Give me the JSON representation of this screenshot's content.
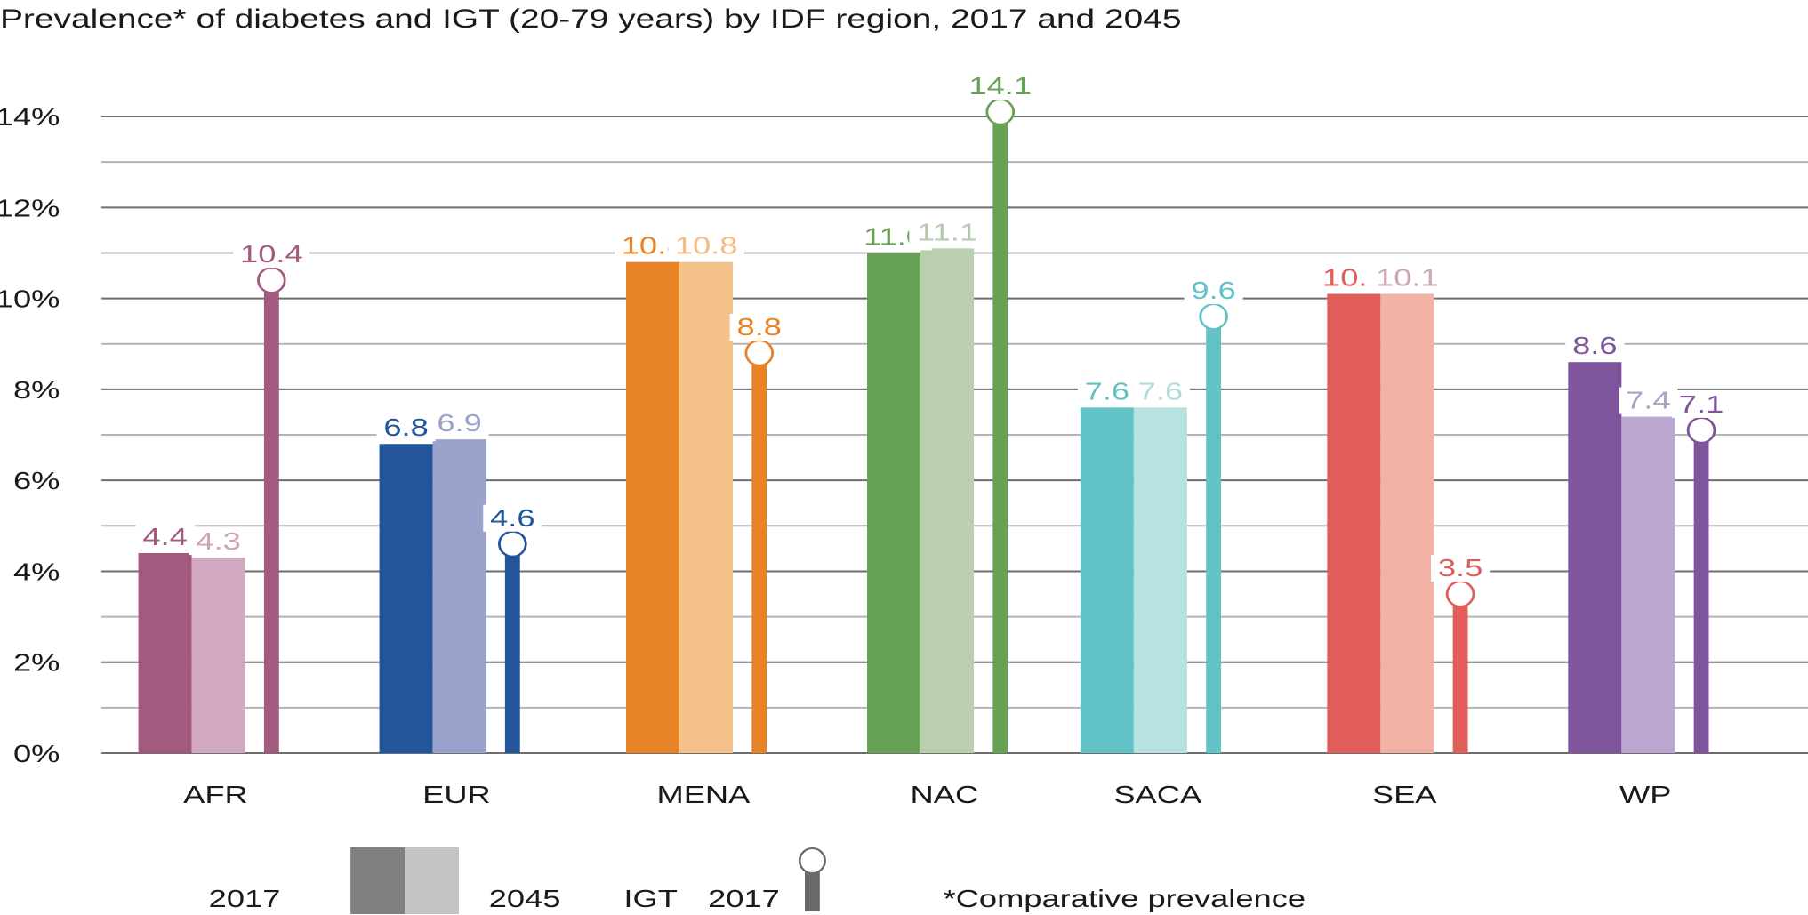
{
  "chart_data": {
    "type": "bar",
    "title": "Prevalence* of diabetes and IGT (20-79 years) by IDF region, 2017 and 2045",
    "xlabel": "",
    "ylabel": "",
    "ylim": [
      0,
      14
    ],
    "y_ticks": [
      0,
      2,
      4,
      6,
      8,
      10,
      12,
      14
    ],
    "y_tick_labels": [
      "0%",
      "2%",
      "4%",
      "6%",
      "8%",
      "10%",
      "12%",
      "14%"
    ],
    "y_minor_ticks": [
      1,
      3,
      5,
      7,
      9,
      11,
      13
    ],
    "grid": true,
    "categories": [
      "AFR",
      "EUR",
      "MENA",
      "NAC",
      "SACA",
      "SEA",
      "WP"
    ],
    "series": [
      {
        "name": "Diabetes 2017",
        "style": "bar",
        "values": [
          4.4,
          6.8,
          10.8,
          11.0,
          7.6,
          10.1,
          8.6
        ],
        "labels": [
          "4.4",
          "6.8",
          "10.8",
          "11.0",
          "7.6",
          "10.1",
          "8.6"
        ]
      },
      {
        "name": "Diabetes 2045",
        "style": "bar",
        "values": [
          4.3,
          6.9,
          10.8,
          11.1,
          7.6,
          10.1,
          7.4
        ],
        "labels": [
          "4.3",
          "6.9",
          "10.8",
          "11.1",
          "7.6",
          "10.1",
          "7.4"
        ]
      },
      {
        "name": "IGT 2017",
        "style": "lollipop",
        "values": [
          10.4,
          4.6,
          8.8,
          14.1,
          9.6,
          3.5,
          7.1
        ],
        "labels": [
          "10.4",
          "4.6",
          "8.8",
          "14.1",
          "9.6",
          "3.5",
          "7.1"
        ]
      }
    ],
    "region_colors": {
      "AFR": {
        "dark": "#a25a7e",
        "light": "#d1a9c0",
        "label_light": "#cfa3bb"
      },
      "EUR": {
        "dark": "#22559a",
        "light": "#99a3cc",
        "label_light": "#9aa3cc"
      },
      "MENA": {
        "dark": "#e88226",
        "light": "#f6c28b",
        "label_light": "#f3bd88"
      },
      "NAC": {
        "dark": "#66a154",
        "light": "#bacfad",
        "label_light": "#b8c8ac"
      },
      "SACA": {
        "dark": "#62c3c7",
        "light": "#b8e1e1",
        "label_light": "#b2dcdc"
      },
      "SEA": {
        "dark": "#e15d5a",
        "light": "#f2b2a6",
        "label_light": "#cfa6b8"
      },
      "WP": {
        "dark": "#7e559c",
        "light": "#bca7d0",
        "label_light": "#a9a3c8"
      }
    },
    "legend": {
      "position": "bottom",
      "items": [
        {
          "label": "2017",
          "swatch": "#7f8080"
        },
        {
          "label": "2045",
          "swatch": "#c4c4c4"
        },
        {
          "label_prefix": "IGT",
          "label": "2017",
          "swatch": "#6a6a6a",
          "marker": "lollipop"
        }
      ],
      "footnote": "*Comparative prevalence"
    }
  }
}
